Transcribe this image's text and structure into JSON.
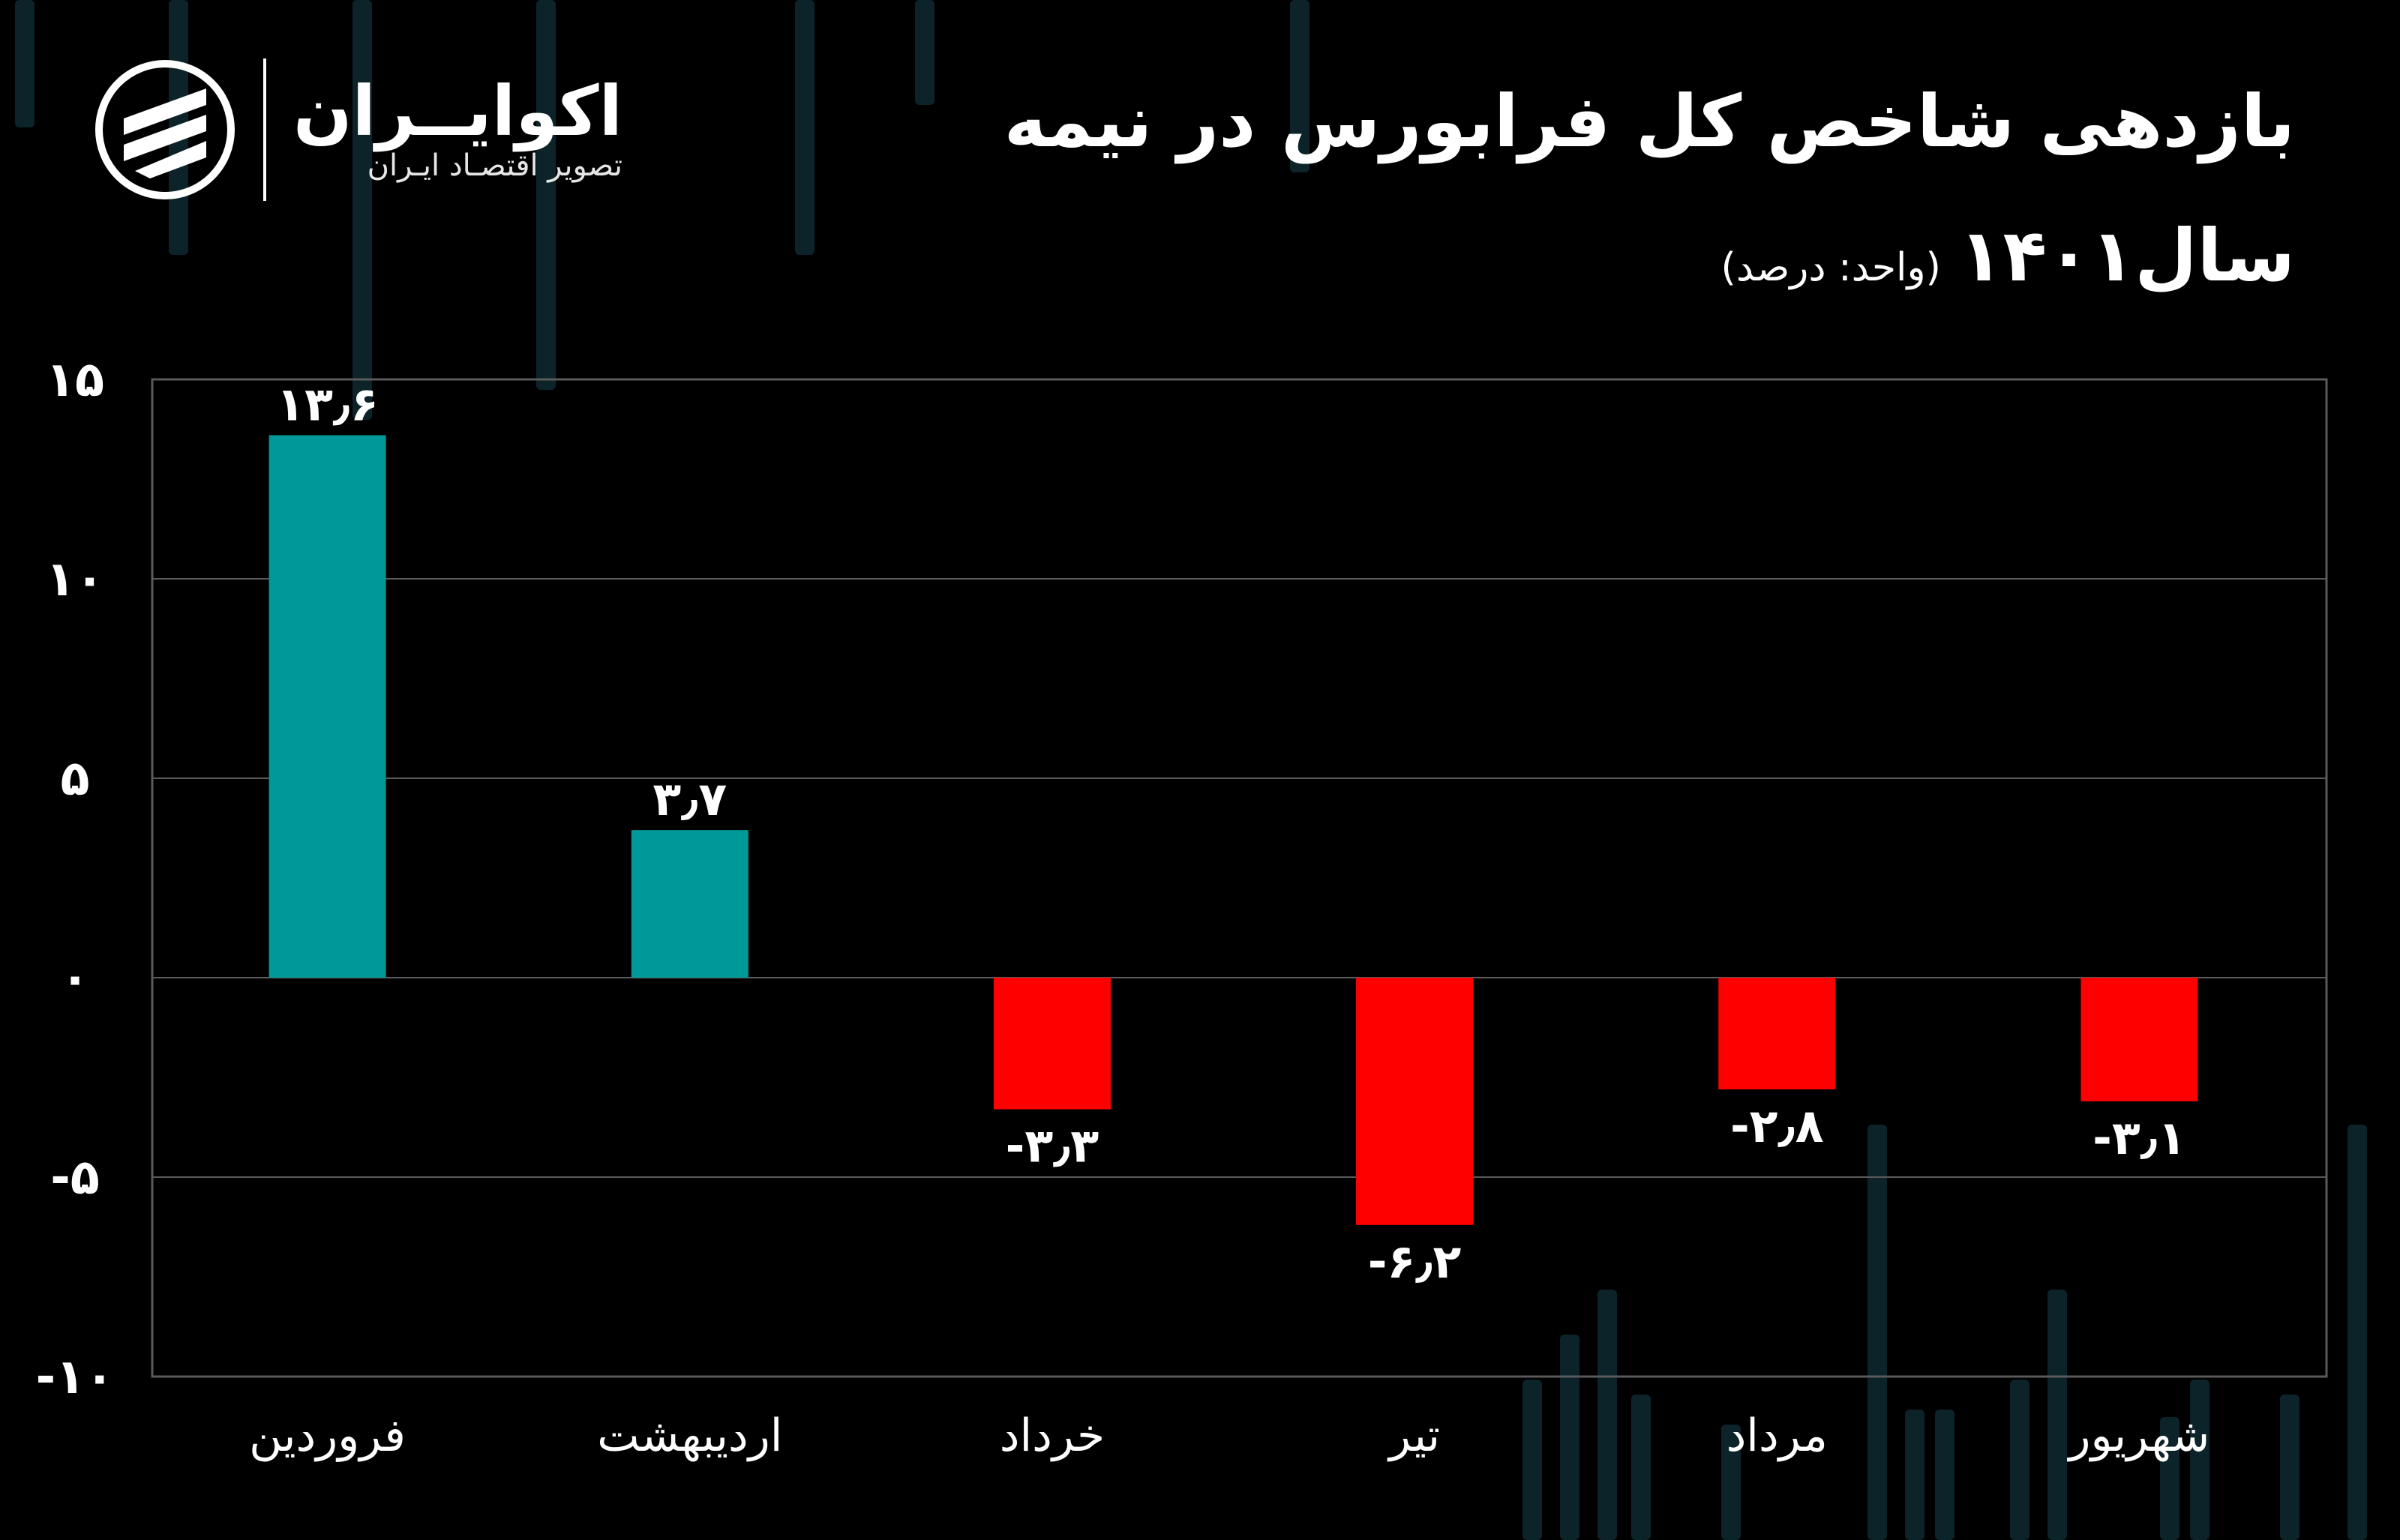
{
  "header": {
    "title_line1": "بازدهی شاخص کل فرابورس در نیمه",
    "title_line2": "سال۱۴۰۱",
    "unit_note": "(واحد: درصد)"
  },
  "logo": {
    "name": "اکوایــران",
    "subtitle": "تصویر اقتصـاد ایـران"
  },
  "colors": {
    "background": "#000000",
    "positive": "#009999",
    "negative": "#ff0000",
    "grid": "#5a5a5a",
    "text": "#ffffff"
  },
  "chart_data": {
    "type": "bar",
    "title": "بازدهی شاخص کل فرابورس در نیمه سال۱۴۰۱",
    "ylabel": "",
    "xlabel": "",
    "categories": [
      "فروردین",
      "اردیبهشت",
      "خرداد",
      "تیر",
      "مرداد",
      "شهریور"
    ],
    "values": [
      13.6,
      3.7,
      -3.3,
      -6.2,
      -2.8,
      -3.1
    ],
    "value_labels": [
      "۱۳٫۶",
      "۳٫۷",
      "-۳٫۳",
      "-۶٫۲",
      "-۲٫۸",
      "-۳٫۱"
    ],
    "ylim": [
      -10,
      15
    ],
    "yticks": [
      15,
      10,
      5,
      0,
      -5,
      -10
    ],
    "ytick_labels": [
      "۱۵",
      "۱۰",
      "۵",
      "۰",
      "-۵",
      "-۱۰"
    ],
    "grid": true,
    "legend": "none"
  }
}
